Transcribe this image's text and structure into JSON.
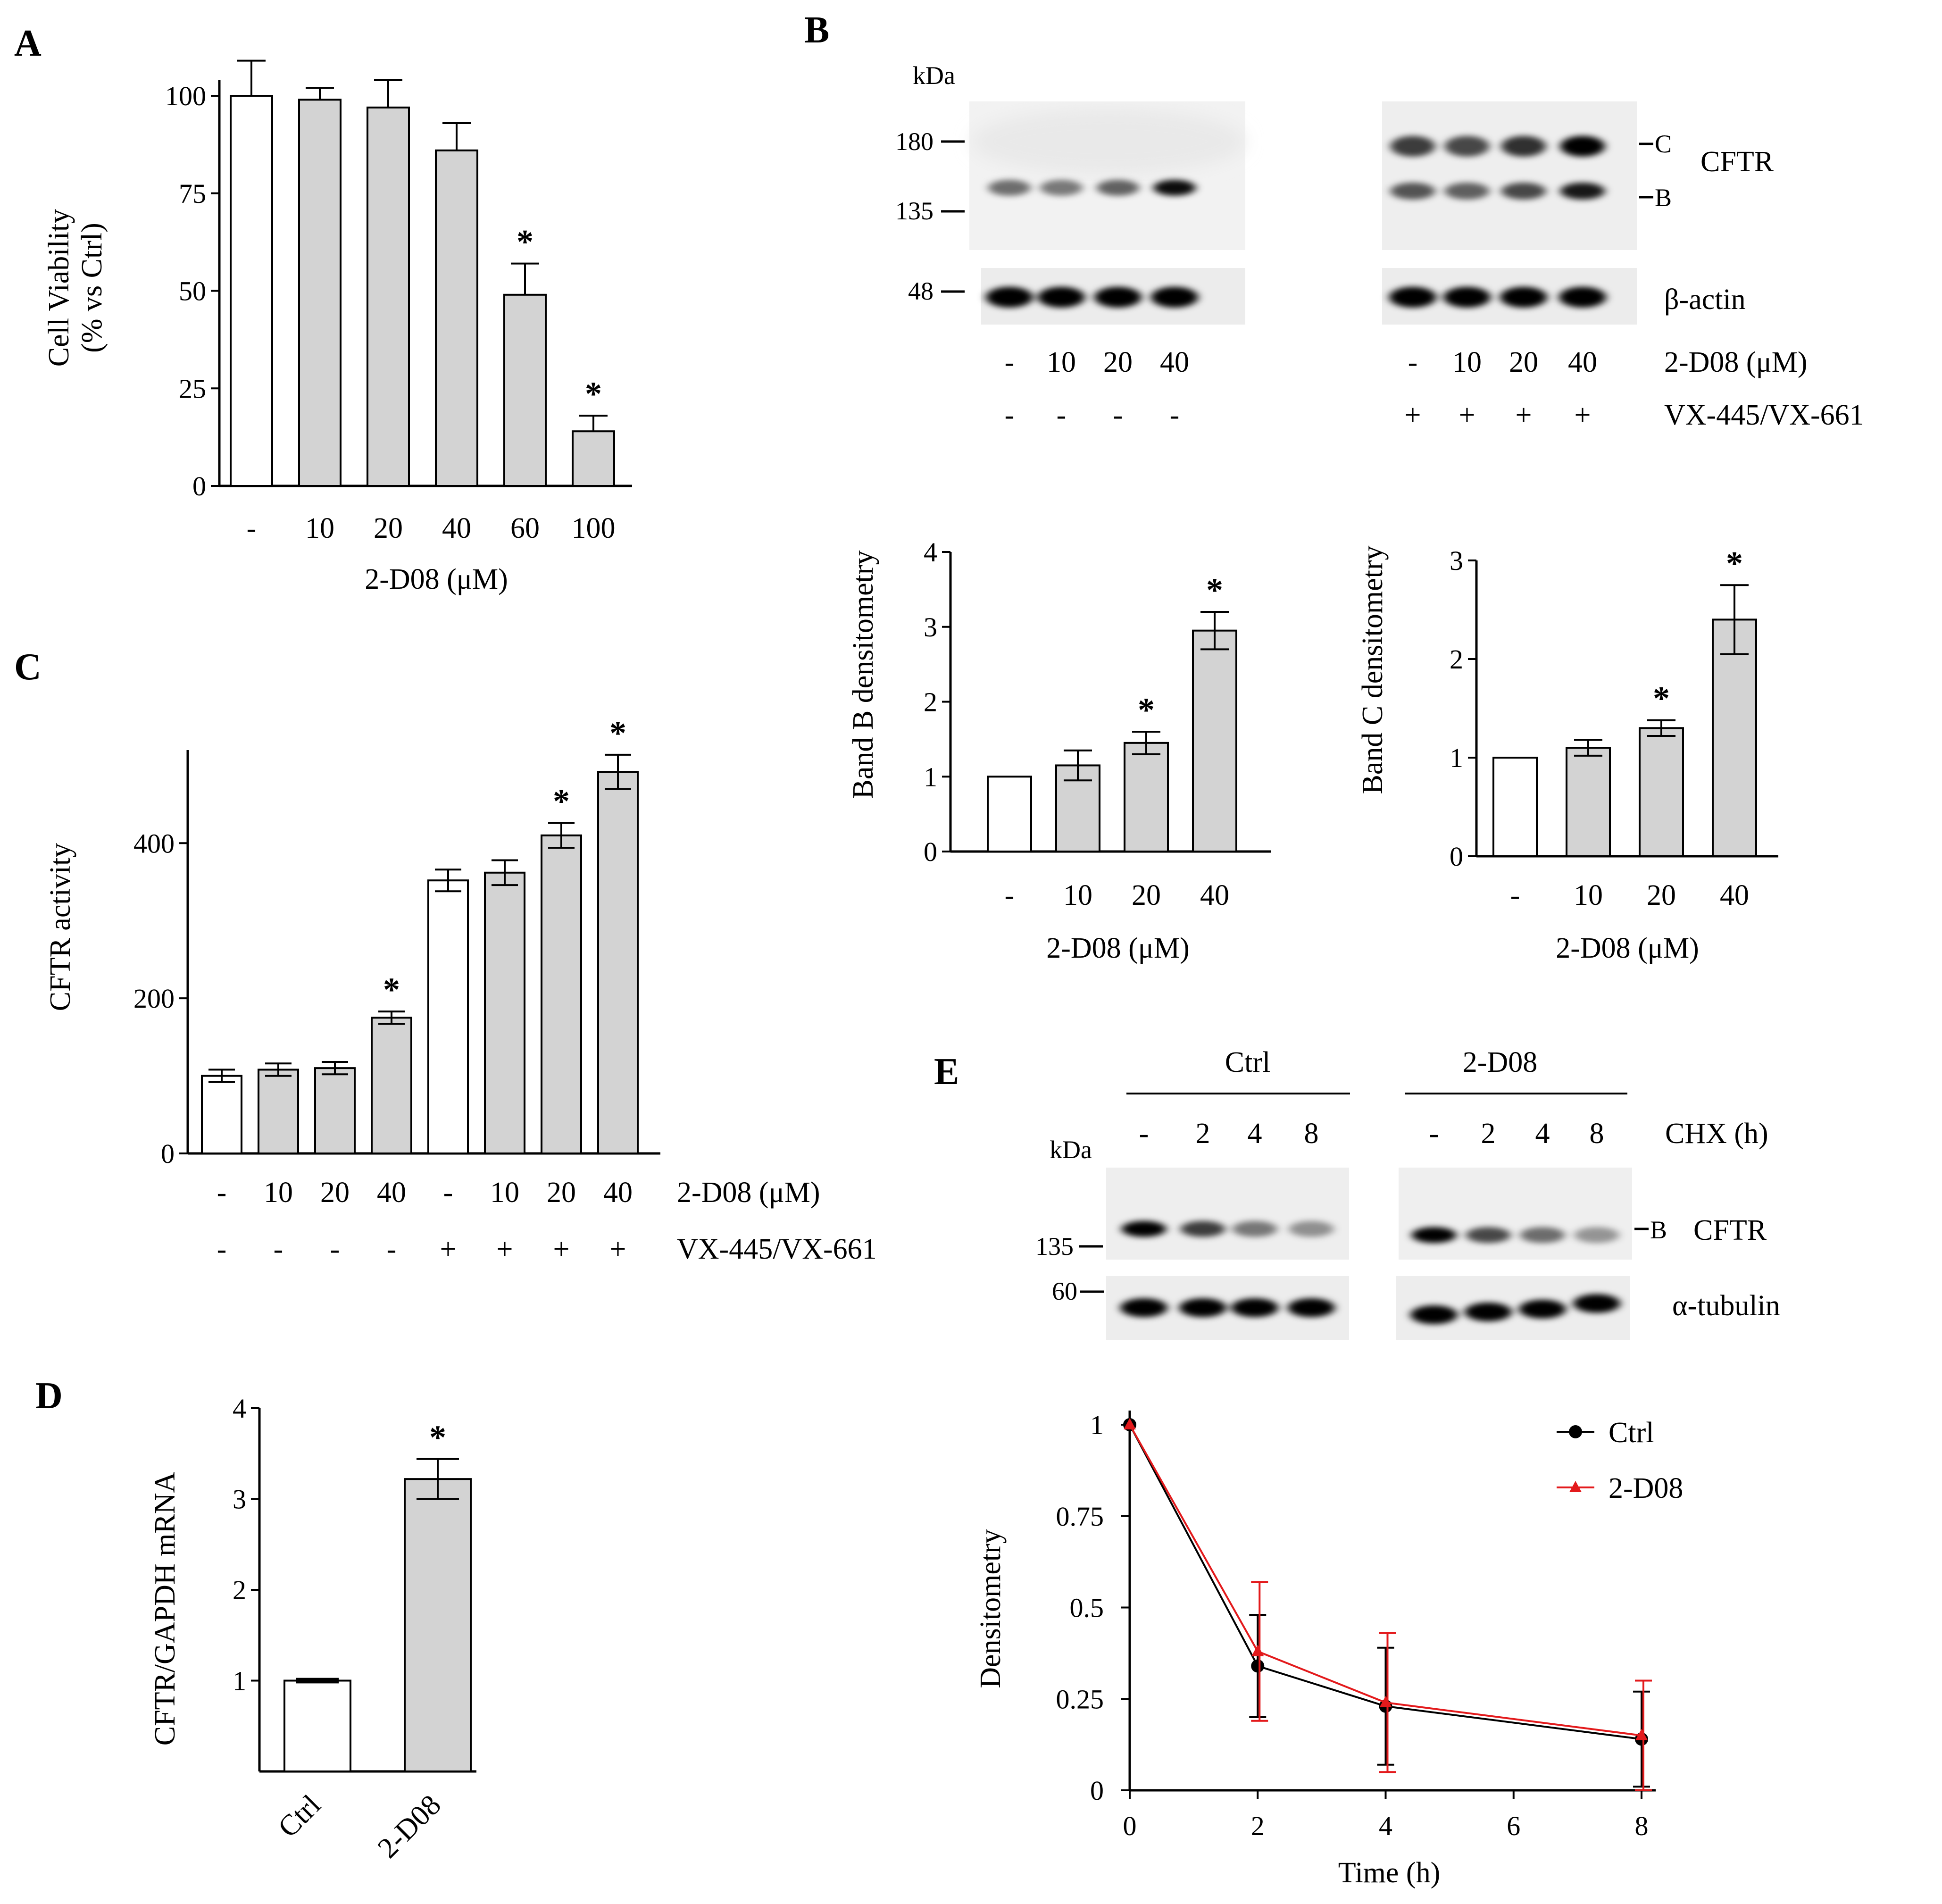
{
  "panels": {
    "A": {
      "letter": "A",
      "chart_type": "bar",
      "ylabel_line1": "Cell Viability",
      "ylabel_line2": "(% vs Ctrl)",
      "xlabel": "2-D08 (μM)",
      "categories": [
        "-",
        "10",
        "20",
        "40",
        "60",
        "100"
      ],
      "values": [
        100,
        99,
        97,
        86,
        49,
        14
      ],
      "errors": [
        9,
        3,
        7,
        7,
        8,
        4
      ],
      "fills": [
        "#ffffff",
        "#d3d3d3",
        "#d3d3d3",
        "#d3d3d3",
        "#d3d3d3",
        "#d3d3d3"
      ],
      "sig": [
        false,
        false,
        false,
        false,
        true,
        true
      ],
      "yticks": [
        0,
        25,
        50,
        75,
        100
      ],
      "ylim": [
        0,
        104
      ]
    },
    "B": {
      "letter": "B",
      "kda_label": "kDa",
      "markers_top": [
        "180",
        "135"
      ],
      "marker_bottom": "48",
      "band_c": "C",
      "band_b": "B",
      "protein_label": "CFTR",
      "loading_label": "β-actin",
      "drug_label": "2-D08 (μM)",
      "corrector_label": "VX-445/VX-661",
      "drug_doses": [
        "-",
        "10",
        "20",
        "40"
      ],
      "corrector_left": [
        "-",
        "-",
        "-",
        "-"
      ],
      "corrector_right": [
        "+",
        "+",
        "+",
        "+"
      ],
      "bandB_chart": {
        "chart_type": "bar",
        "ylabel": "Band B densitometry",
        "xlabel": "2-D08 (μM)",
        "categories": [
          "-",
          "10",
          "20",
          "40"
        ],
        "values": [
          1.0,
          1.15,
          1.45,
          2.95
        ],
        "errors": [
          0.0,
          0.2,
          0.15,
          0.25
        ],
        "fills": [
          "#ffffff",
          "#d3d3d3",
          "#d3d3d3",
          "#d3d3d3"
        ],
        "sig": [
          false,
          false,
          true,
          true
        ],
        "yticks": [
          0,
          1,
          2,
          3,
          4
        ],
        "ylim": [
          0,
          4
        ]
      },
      "bandC_chart": {
        "chart_type": "bar",
        "ylabel": "Band C densitometry",
        "xlabel": "2-D08 (μM)",
        "categories": [
          "-",
          "10",
          "20",
          "40"
        ],
        "values": [
          1.0,
          1.1,
          1.3,
          2.4
        ],
        "errors": [
          0.0,
          0.08,
          0.08,
          0.35
        ],
        "fills": [
          "#ffffff",
          "#d3d3d3",
          "#d3d3d3",
          "#d3d3d3"
        ],
        "sig": [
          false,
          false,
          true,
          true
        ],
        "yticks": [
          0,
          1,
          2,
          3
        ],
        "ylim": [
          0,
          3
        ]
      }
    },
    "C": {
      "letter": "C",
      "chart_type": "bar",
      "ylabel": "CFTR activity",
      "row1_label": "2-D08 (μM)",
      "row2_label": "VX-445/VX-661",
      "categories": [
        "-",
        "10",
        "20",
        "40",
        "-",
        "10",
        "20",
        "40"
      ],
      "corrector": [
        "-",
        "-",
        "-",
        "-",
        "+",
        "+",
        "+",
        "+"
      ],
      "values": [
        100,
        108,
        110,
        175,
        352,
        362,
        410,
        492
      ],
      "errors": [
        8,
        8,
        8,
        8,
        14,
        16,
        16,
        22
      ],
      "fills": [
        "#ffffff",
        "#d3d3d3",
        "#d3d3d3",
        "#d3d3d3",
        "#ffffff",
        "#d3d3d3",
        "#d3d3d3",
        "#d3d3d3"
      ],
      "sig": [
        false,
        false,
        false,
        true,
        false,
        false,
        true,
        true
      ],
      "yticks": [
        0,
        200,
        400
      ],
      "ylim": [
        0,
        520
      ]
    },
    "D": {
      "letter": "D",
      "chart_type": "bar",
      "ylabel": "CFTR/GAPDH mRNA",
      "categories": [
        "Ctrl",
        "2-D08"
      ],
      "values": [
        1.0,
        3.22
      ],
      "errors": [
        0.02,
        0.22
      ],
      "fills": [
        "#ffffff",
        "#d3d3d3"
      ],
      "sig": [
        false,
        true
      ],
      "yticks": [
        1,
        2,
        3,
        4
      ],
      "ylim": [
        0,
        4
      ]
    },
    "E": {
      "letter": "E",
      "group_ctrl": "Ctrl",
      "group_drug": "2-D08",
      "kda_label": "kDa",
      "marker_135": "135",
      "marker_60": "60",
      "band_b": "B",
      "protein_label": "CFTR",
      "loading_label": "α-tubulin",
      "chx_label": "CHX (h)",
      "chx_ctrl": [
        "-",
        "2",
        "4",
        "8"
      ],
      "chx_drug": [
        "-",
        "2",
        "4",
        "8"
      ],
      "line_chart": {
        "chart_type": "line",
        "ylabel": "Densitometry",
        "xlabel": "Time (h)",
        "x": [
          0,
          2,
          4,
          8
        ],
        "xticks": [
          0,
          2,
          4,
          6,
          8
        ],
        "ytick_labels": [
          "0",
          "0.25",
          "0.5",
          "0.75",
          "1"
        ],
        "yticks": [
          0,
          0.25,
          0.5,
          0.75,
          1
        ],
        "xlim": [
          0,
          8
        ],
        "ylim": [
          0,
          1
        ],
        "series": [
          {
            "name": "Ctrl",
            "color": "#000000",
            "marker": "circle",
            "values": [
              1.0,
              0.34,
              0.23,
              0.14
            ],
            "errors": [
              0,
              0.14,
              0.16,
              0.13
            ]
          },
          {
            "name": "2-D08",
            "color": "#e31a1c",
            "marker": "triangle",
            "values": [
              1.0,
              0.38,
              0.24,
              0.15
            ],
            "errors": [
              0,
              0.19,
              0.19,
              0.15
            ]
          }
        ]
      }
    }
  },
  "chart_data": [
    {
      "type": "bar",
      "title": "A",
      "categories": [
        "-",
        "10",
        "20",
        "40",
        "60",
        "100"
      ],
      "values": [
        100,
        99,
        97,
        86,
        49,
        14
      ],
      "xlabel": "2-D08 (μM)",
      "ylabel": "Cell Viability (% vs Ctrl)",
      "ylim": [
        0,
        104
      ]
    },
    {
      "type": "bar",
      "title": "B Band B densitometry",
      "categories": [
        "-",
        "10",
        "20",
        "40"
      ],
      "values": [
        1.0,
        1.15,
        1.45,
        2.95
      ],
      "xlabel": "2-D08 (μM)",
      "ylabel": "Band B densitometry",
      "ylim": [
        0,
        4
      ]
    },
    {
      "type": "bar",
      "title": "B Band C densitometry",
      "categories": [
        "-",
        "10",
        "20",
        "40"
      ],
      "values": [
        1.0,
        1.1,
        1.3,
        2.4
      ],
      "xlabel": "2-D08 (μM)",
      "ylabel": "Band C densitometry",
      "ylim": [
        0,
        3
      ]
    },
    {
      "type": "bar",
      "title": "C",
      "categories": [
        "- / -",
        "10 / -",
        "20 / -",
        "40 / -",
        "- / +",
        "10 / +",
        "20 / +",
        "40 / +"
      ],
      "values": [
        100,
        108,
        110,
        175,
        352,
        362,
        410,
        492
      ],
      "xlabel": "2-D08 (μM) / VX-445/VX-661",
      "ylabel": "CFTR activity",
      "ylim": [
        0,
        520
      ]
    },
    {
      "type": "bar",
      "title": "D",
      "categories": [
        "Ctrl",
        "2-D08"
      ],
      "values": [
        1.0,
        3.22
      ],
      "xlabel": "",
      "ylabel": "CFTR/GAPDH mRNA",
      "ylim": [
        0,
        4
      ]
    },
    {
      "type": "line",
      "title": "E",
      "x": [
        0,
        2,
        4,
        8
      ],
      "series": [
        {
          "name": "Ctrl",
          "values": [
            1.0,
            0.34,
            0.23,
            0.14
          ]
        },
        {
          "name": "2-D08",
          "values": [
            1.0,
            0.38,
            0.24,
            0.15
          ]
        }
      ],
      "xlabel": "Time (h)",
      "ylabel": "Densitometry",
      "xlim": [
        0,
        8
      ],
      "ylim": [
        0,
        1
      ]
    }
  ]
}
